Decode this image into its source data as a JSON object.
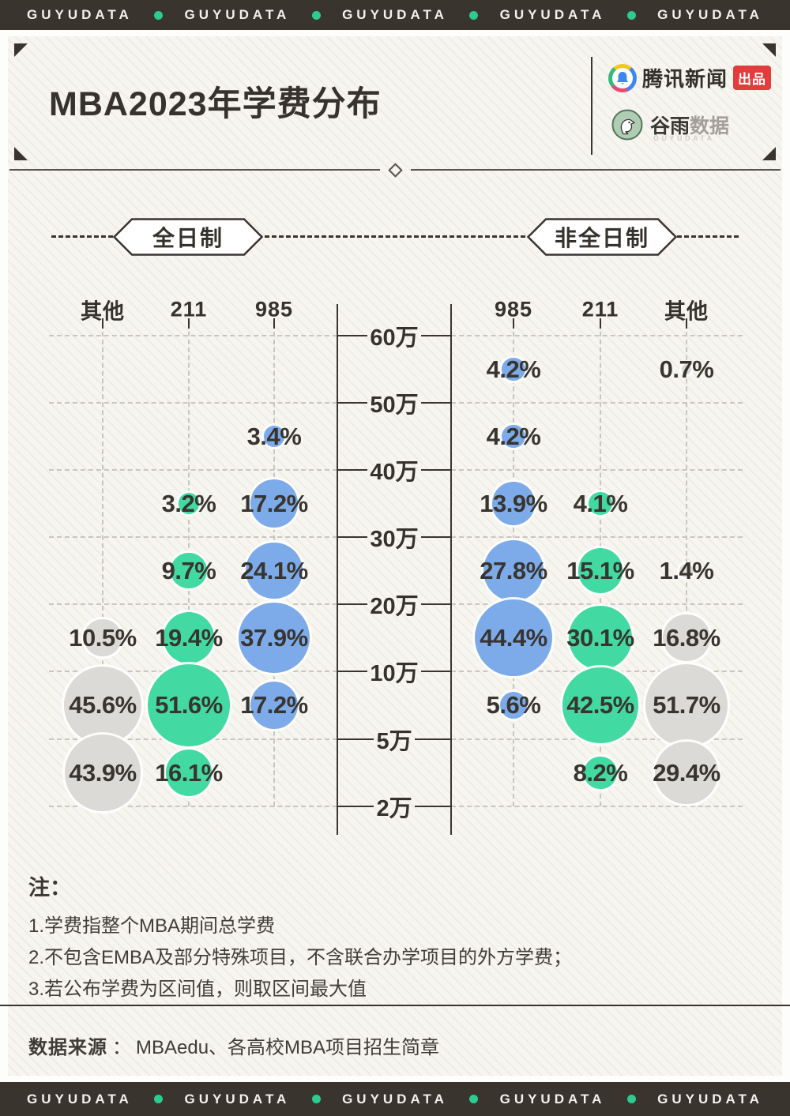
{
  "banner": {
    "brand": "GUYUDATA",
    "repeat": 5
  },
  "header": {
    "title": "MBA2023年学费分布",
    "tencent": {
      "name": "腾讯新闻",
      "badge": "出品"
    },
    "guyu": {
      "name_primary": "谷雨",
      "name_secondary": "数据",
      "subtitle": "GUYUDATA"
    }
  },
  "pills": {
    "left": "全日制",
    "right": "非全日制"
  },
  "chart_data": {
    "type": "bubble",
    "title": "MBA2023年学费分布",
    "y_ticks": [
      "60万",
      "50万",
      "40万",
      "30万",
      "20万",
      "10万",
      "5万",
      "2万"
    ],
    "bands": [
      "50-60万",
      "40-50万",
      "30-40万",
      "20-30万",
      "10-20万",
      "5-10万",
      "2-5万"
    ],
    "legend_note": "bubble size = share of programs, color = school tier",
    "panels": [
      {
        "label": "全日制",
        "columns": [
          "其他",
          "211",
          "985"
        ],
        "series": [
          {
            "name": "其他",
            "color": "#dcdad7",
            "points": [
              {
                "band": "10-20万",
                "pct": 10.5
              },
              {
                "band": "5-10万",
                "pct": 45.6
              },
              {
                "band": "2-5万",
                "pct": 43.9
              }
            ]
          },
          {
            "name": "211",
            "color": "#43d9a3",
            "points": [
              {
                "band": "30-40万",
                "pct": 3.2
              },
              {
                "band": "20-30万",
                "pct": 9.7
              },
              {
                "band": "10-20万",
                "pct": 19.4
              },
              {
                "band": "5-10万",
                "pct": 51.6
              },
              {
                "band": "2-5万",
                "pct": 16.1
              }
            ]
          },
          {
            "name": "985",
            "color": "#7dabea",
            "points": [
              {
                "band": "40-50万",
                "pct": 3.4
              },
              {
                "band": "30-40万",
                "pct": 17.2
              },
              {
                "band": "20-30万",
                "pct": 24.1
              },
              {
                "band": "10-20万",
                "pct": 37.9
              },
              {
                "band": "5-10万",
                "pct": 17.2
              }
            ]
          }
        ]
      },
      {
        "label": "非全日制",
        "columns": [
          "985",
          "211",
          "其他"
        ],
        "series": [
          {
            "name": "985",
            "color": "#7dabea",
            "points": [
              {
                "band": "50-60万",
                "pct": 4.2
              },
              {
                "band": "40-50万",
                "pct": 4.2
              },
              {
                "band": "30-40万",
                "pct": 13.9
              },
              {
                "band": "20-30万",
                "pct": 27.8
              },
              {
                "band": "10-20万",
                "pct": 44.4
              },
              {
                "band": "5-10万",
                "pct": 5.6
              }
            ]
          },
          {
            "name": "211",
            "color": "#43d9a3",
            "points": [
              {
                "band": "30-40万",
                "pct": 4.1
              },
              {
                "band": "20-30万",
                "pct": 15.1
              },
              {
                "band": "10-20万",
                "pct": 30.1
              },
              {
                "band": "5-10万",
                "pct": 42.5
              },
              {
                "band": "2-5万",
                "pct": 8.2
              }
            ]
          },
          {
            "name": "其他",
            "color": "#dcdad7",
            "points": [
              {
                "band": "50-60万",
                "pct": 0.7
              },
              {
                "band": "20-30万",
                "pct": 1.4
              },
              {
                "band": "10-20万",
                "pct": 16.8
              },
              {
                "band": "5-10万",
                "pct": 51.7
              },
              {
                "band": "2-5万",
                "pct": 29.4
              }
            ]
          }
        ]
      }
    ]
  },
  "notes": {
    "heading": "注：",
    "lines": [
      "1.学费指整个MBA期间总学费",
      "2.不包含EMBA及部分特殊项目，不含联合办学项目的外方学费；",
      "3.若公布学费为区间值，则取区间最大值"
    ]
  },
  "source": {
    "label": "数据来源",
    "separator": "：",
    "value": "MBAedu、各高校MBA项目招生简章"
  },
  "colors": {
    "blue_985": "#7dabea",
    "green_211": "#43d9a3",
    "gray_other": "#dcdad7",
    "banner_bg": "#3a342f",
    "dot_green": "#2ecb8f",
    "badge_red": "#e23c3c",
    "ink": "#3a3633"
  }
}
